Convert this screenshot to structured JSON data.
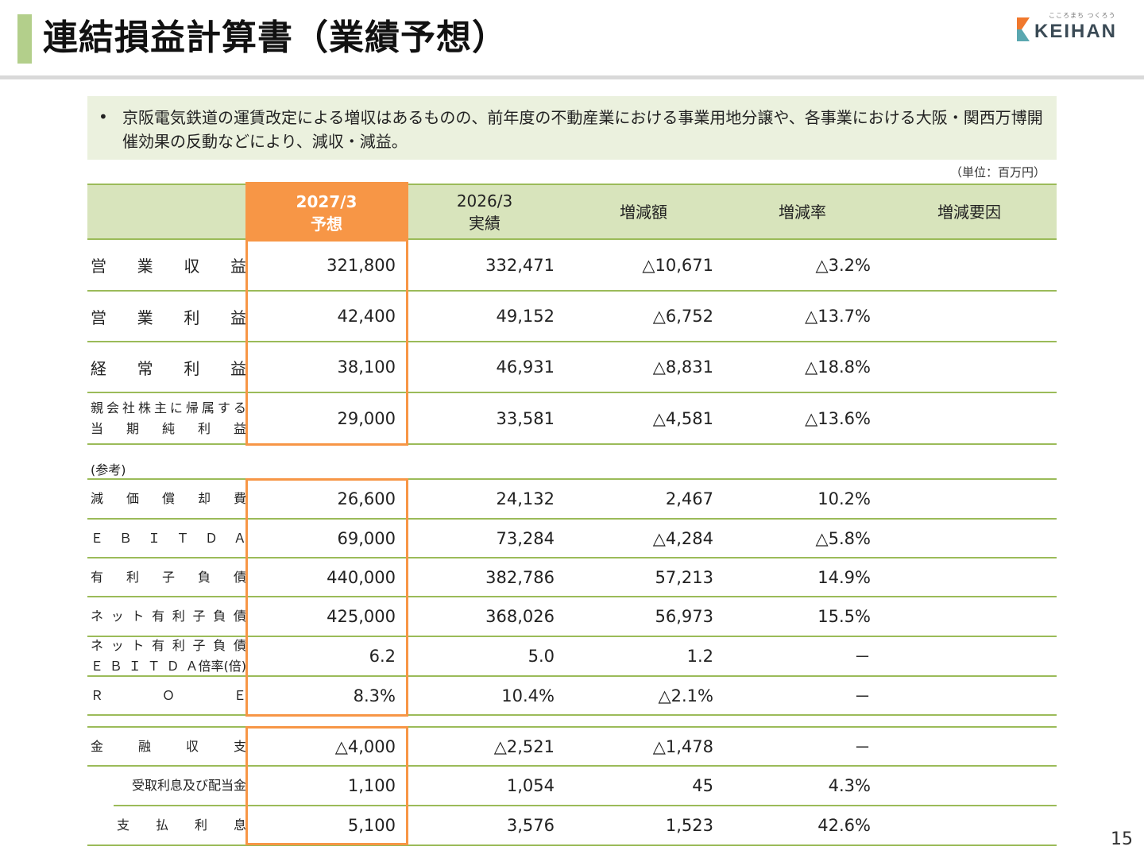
{
  "header": {
    "title": "連結損益計算書（業績予想）",
    "logo": {
      "tagline": "こころまち つくろう",
      "name": "KEIHAN",
      "colors": {
        "orange": "#f0782d",
        "teal": "#5aa7b0"
      }
    }
  },
  "summary": {
    "bullet": "•",
    "text": "京阪電気鉄道の運賃改定による増収はあるものの、前年度の不動産業における事業用地分譲や、各事業における大阪・関西万博開催効果の反動などにより、減収・減益。"
  },
  "unit": "（単位：百万円）",
  "table": {
    "columns": [
      {
        "line1": "2027/3",
        "line2": "予想"
      },
      {
        "line1": "2026/3",
        "line2": "実績"
      },
      {
        "line1": "増減額",
        "line2": ""
      },
      {
        "line1": "増減率",
        "line2": ""
      },
      {
        "line1": "増減要因",
        "line2": ""
      }
    ],
    "rows": [
      {
        "label": [
          "営",
          "業",
          "収",
          "益"
        ],
        "forecast": "321,800",
        "actual": "332,471",
        "change": "△10,671",
        "rate": "△3.2%"
      },
      {
        "label": [
          "営",
          "業",
          "利",
          "益"
        ],
        "forecast": "42,400",
        "actual": "49,152",
        "change": "△6,752",
        "rate": "△13.7%"
      },
      {
        "label": [
          "経",
          "常",
          "利",
          "益"
        ],
        "forecast": "38,100",
        "actual": "46,931",
        "change": "△8,831",
        "rate": "△18.8%"
      },
      {
        "label_line1": [
          "親",
          "会",
          "社",
          "株",
          "主",
          "に",
          "帰",
          "属",
          "す",
          "る"
        ],
        "label_line2": [
          "当",
          "期",
          "純",
          "利",
          "益"
        ],
        "forecast": "29,000",
        "actual": "33,581",
        "change": "△4,581",
        "rate": "△13.6%"
      }
    ],
    "reference_label": "(参考)",
    "reference_rows": [
      {
        "label": [
          "減",
          "価",
          "償",
          "却",
          "費"
        ],
        "forecast": "26,600",
        "actual": "24,132",
        "change": "2,467",
        "rate": "10.2%"
      },
      {
        "label": [
          "Ｅ",
          "Ｂ",
          "Ｉ",
          "Ｔ",
          "Ｄ",
          "Ａ"
        ],
        "forecast": "69,000",
        "actual": "73,284",
        "change": "△4,284",
        "rate": "△5.8%"
      },
      {
        "label": [
          "有",
          "利",
          "子",
          "負",
          "債"
        ],
        "forecast": "440,000",
        "actual": "382,786",
        "change": "57,213",
        "rate": "14.9%"
      },
      {
        "label": [
          "ネ",
          "ッ",
          "ト",
          "有",
          "利",
          "子",
          "負",
          "債"
        ],
        "forecast": "425,000",
        "actual": "368,026",
        "change": "56,973",
        "rate": "15.5%"
      },
      {
        "label_line1": [
          "ネ",
          "ッ",
          "ト",
          "有",
          "利",
          "子",
          "負",
          "債"
        ],
        "label_line2": [
          "Ｅ",
          "Ｂ",
          "Ｉ",
          "Ｔ",
          "Ｄ",
          "Ａ倍率(倍)"
        ],
        "forecast": "6.2",
        "actual": "5.0",
        "change": "1.2",
        "rate": "－"
      },
      {
        "label": [
          "Ｒ",
          "Ｏ",
          "Ｅ"
        ],
        "forecast": "8.3%",
        "actual": "10.4%",
        "change": "△2.1%",
        "rate": "－"
      }
    ],
    "finance_rows": [
      {
        "label": [
          "金",
          "融",
          "収",
          "支"
        ],
        "forecast": "△4,000",
        "actual": "△2,521",
        "change": "△1,478",
        "rate": "－"
      },
      {
        "label_text": "受取利息及び配当金",
        "forecast": "1,100",
        "actual": "1,054",
        "change": "45",
        "rate": "4.3%"
      },
      {
        "label": [
          "支",
          "払",
          "利",
          "息"
        ],
        "forecast": "5,100",
        "actual": "3,576",
        "change": "1,523",
        "rate": "42.6%"
      }
    ]
  },
  "page_number": "15"
}
